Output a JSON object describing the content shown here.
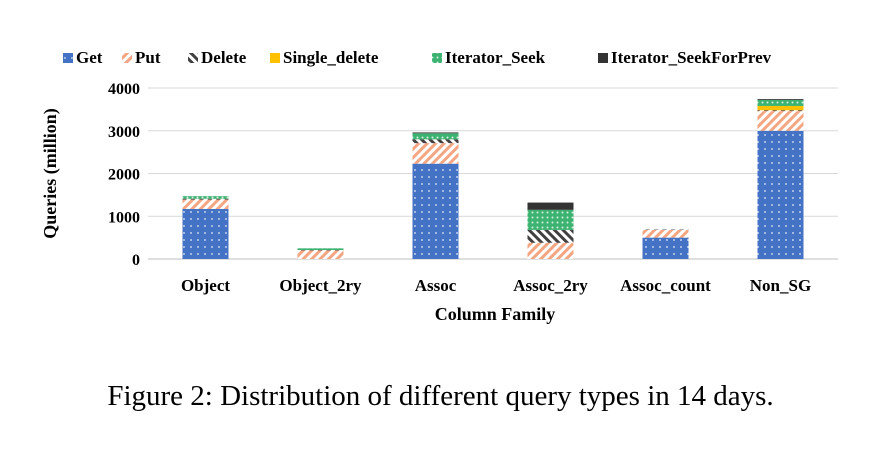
{
  "caption": "Figure 2: Distribution of different query types in 14 days.",
  "chart_data": {
    "type": "bar",
    "stacked": true,
    "title": "",
    "xlabel": "Column Family",
    "ylabel": "Queries (million)",
    "ylim": [
      0,
      4000
    ],
    "yticks": [
      0,
      1000,
      2000,
      3000,
      4000
    ],
    "grid": true,
    "legend_position": "top",
    "categories": [
      "Object",
      "Object_2ry",
      "Assoc",
      "Assoc_2ry",
      "Assoc_count",
      "Non_SG"
    ],
    "series": [
      {
        "name": "Get",
        "color": "#4472c4",
        "pattern": "dots",
        "values": [
          1170,
          0,
          2230,
          0,
          500,
          3000
        ]
      },
      {
        "name": "Put",
        "color": "#f4a582",
        "pattern": "stripes",
        "values": [
          220,
          200,
          480,
          380,
          180,
          460
        ]
      },
      {
        "name": "Delete",
        "color": "#a6a6a6",
        "pattern": "hatch-dark",
        "values": [
          20,
          10,
          90,
          300,
          10,
          20
        ]
      },
      {
        "name": "Single_delete",
        "color": "#ffc000",
        "pattern": "solid",
        "values": [
          0,
          0,
          0,
          0,
          0,
          100
        ]
      },
      {
        "name": "Iterator_Seek",
        "color": "#3cb371",
        "pattern": "dots-light",
        "values": [
          60,
          40,
          140,
          470,
          0,
          140
        ]
      },
      {
        "name": "Iterator_SeekForPrev",
        "color": "#333333",
        "pattern": "solid",
        "values": [
          0,
          0,
          20,
          170,
          0,
          20
        ]
      }
    ]
  }
}
